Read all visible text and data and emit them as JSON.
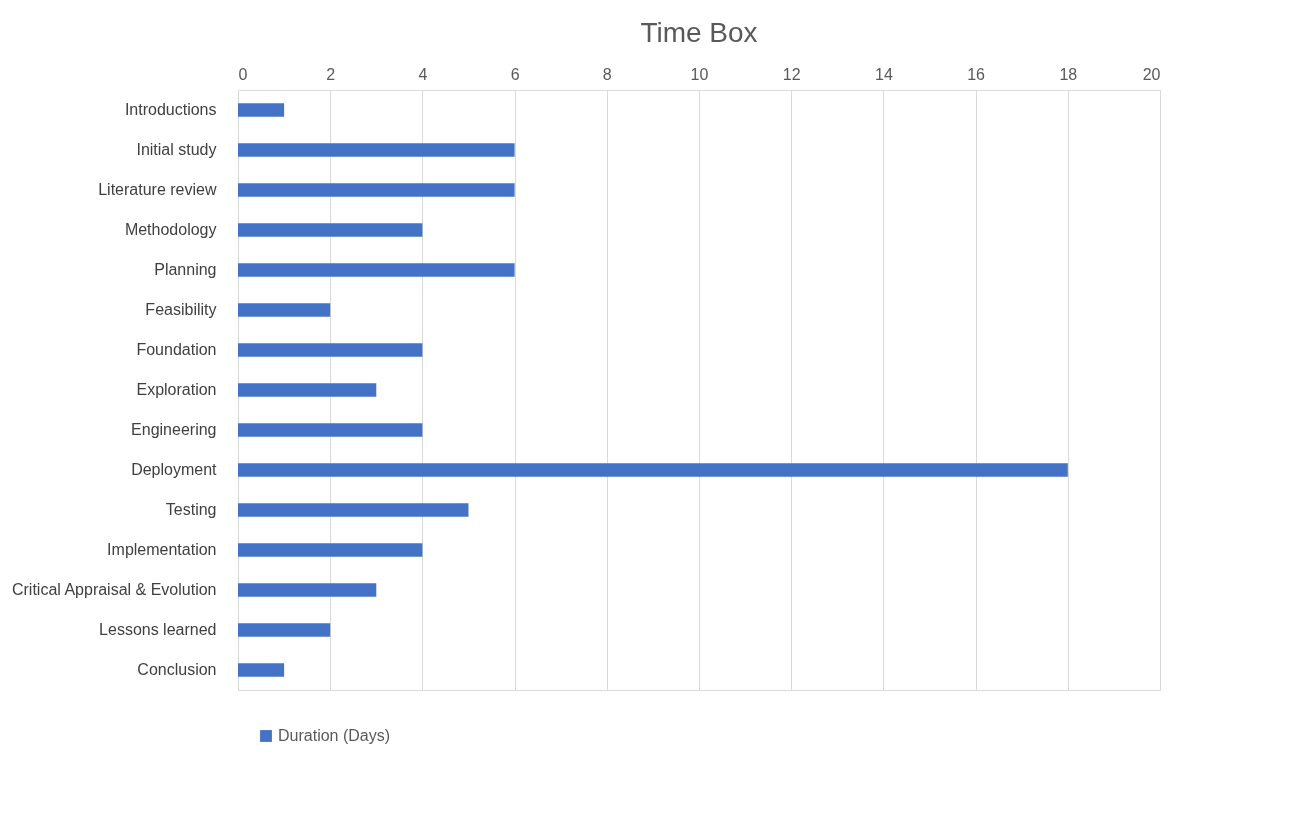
{
  "chart_data": {
    "type": "bar",
    "title": "Time Box",
    "orientation": "horizontal",
    "categories": [
      "Introductions",
      "Initial study",
      "Literature review",
      "Methodology",
      "Planning",
      "Feasibility",
      "Foundation",
      "Exploration",
      "Engineering",
      "Deployment",
      "Testing",
      "Implementation",
      "Critical Appraisal & Evolution",
      "Lessons learned",
      "Conclusion"
    ],
    "series": [
      {
        "name": "Duration (Days)",
        "color": "#4472c4",
        "values": [
          1,
          6,
          6,
          4,
          6,
          2,
          4,
          3,
          4,
          18,
          5,
          4,
          3,
          2,
          1
        ]
      }
    ],
    "xlim": [
      0,
      20
    ],
    "xticks": [
      0,
      2,
      4,
      6,
      8,
      10,
      12,
      14,
      16,
      18,
      20
    ],
    "grid": "x",
    "legend": "bottom"
  }
}
